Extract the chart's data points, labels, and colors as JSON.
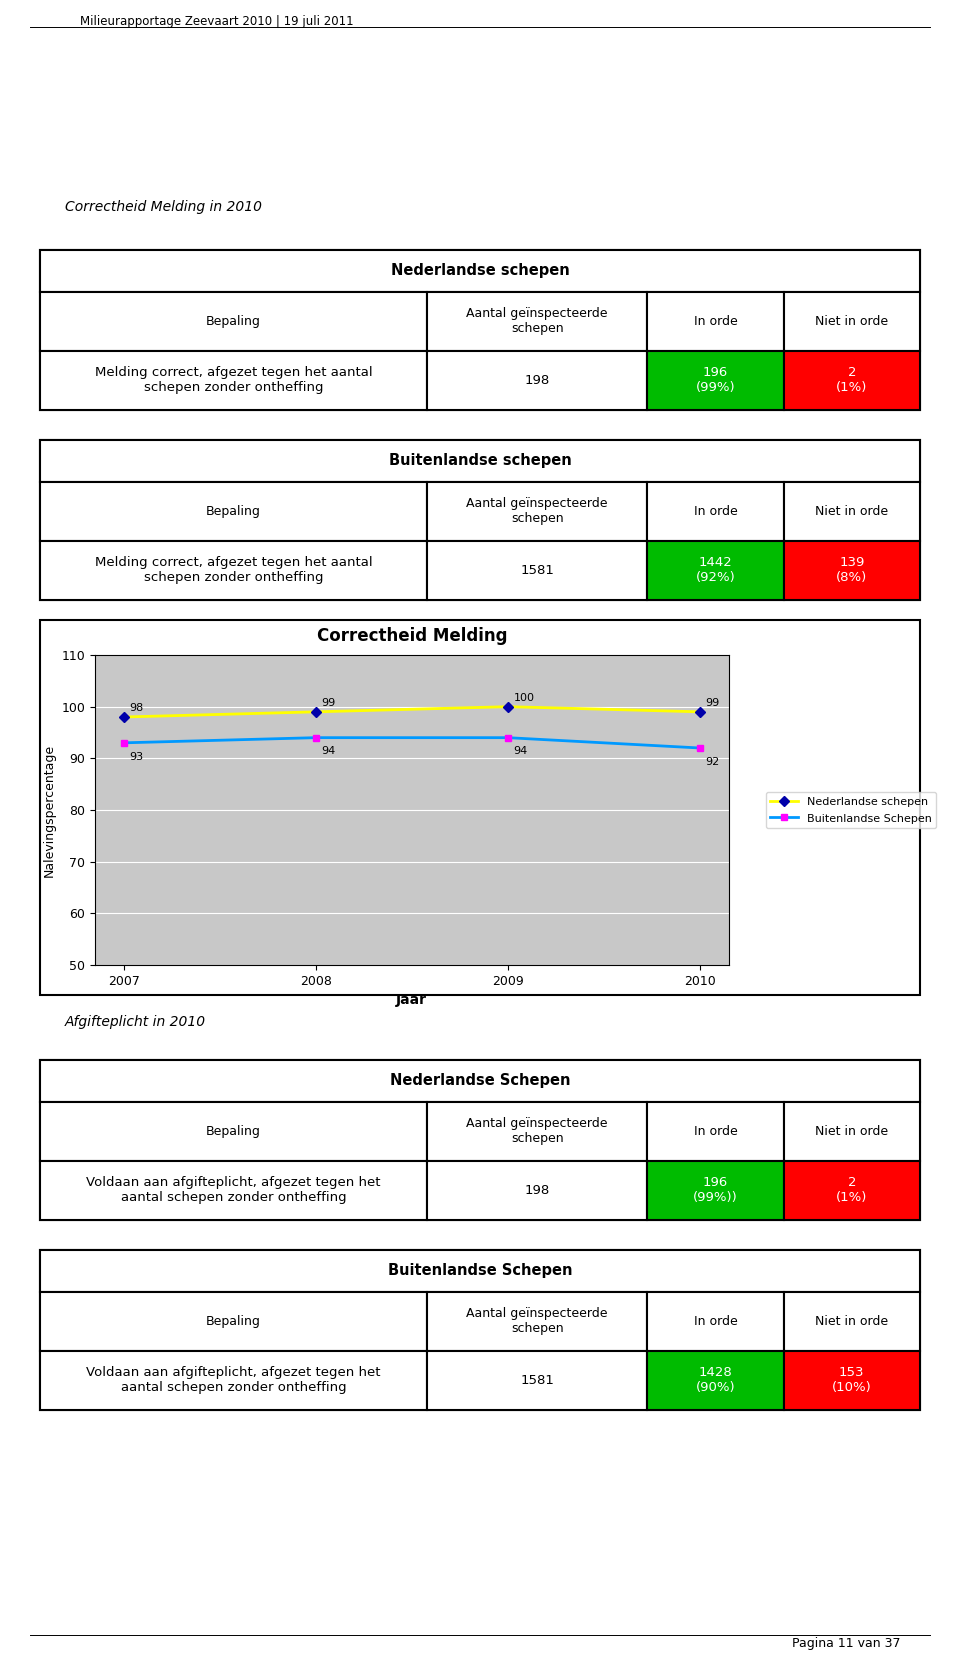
{
  "header_text": "Milieurapportage Zeevaart 2010 | 19 juli 2011",
  "section1_title": "Correctheid Melding in 2010",
  "table1_header": "Nederlandse schepen",
  "table1_cols": [
    "Bepaling",
    "Aantal geïnspecteerde\nschepen",
    "In orde",
    "Niet in orde"
  ],
  "table1_row": [
    "Melding correct, afgezet tegen het aantal\nschepen zonder ontheffing",
    "198",
    "196\n(99%)",
    "2\n(1%)"
  ],
  "table1_in_orde_color": "#00bb00",
  "table1_niet_in_orde_color": "#ff0000",
  "table2_header": "Buitenlandse schepen",
  "table2_cols": [
    "Bepaling",
    "Aantal geïnspecteerde\nschepen",
    "In orde",
    "Niet in orde"
  ],
  "table2_row": [
    "Melding correct, afgezet tegen het aantal\nschepen zonder ontheffing",
    "1581",
    "1442\n(92%)",
    "139\n(8%)"
  ],
  "table2_in_orde_color": "#00bb00",
  "table2_niet_in_orde_color": "#ff0000",
  "chart_title": "Correctheid Melding",
  "chart_years": [
    2007,
    2008,
    2009,
    2010
  ],
  "nl_values": [
    98,
    99,
    100,
    99
  ],
  "bl_values": [
    93,
    94,
    94,
    92
  ],
  "nl_label": "Nederlandse schepen",
  "bl_label": "Buitenlandse Schepen",
  "nl_color": "#ffff00",
  "nl_marker_color": "#0000aa",
  "bl_color": "#0099ff",
  "bl_marker_color": "#ff00ff",
  "chart_ylabel": "Nalevingspercentage",
  "chart_xlabel": "Jaar",
  "chart_ylim": [
    50,
    110
  ],
  "chart_yticks": [
    50,
    60,
    70,
    80,
    90,
    100,
    110
  ],
  "section2_title": "Afgifteplicht in 2010",
  "table3_header": "Nederlandse Schepen",
  "table3_cols": [
    "Bepaling",
    "Aantal geïnspecteerde\nschepen",
    "In orde",
    "Niet in orde"
  ],
  "table3_row": [
    "Voldaan aan afgifteplicht, afgezet tegen het\naantal schepen zonder ontheffing",
    "198",
    "196\n(99%))",
    "2\n(1%)"
  ],
  "table3_in_orde_color": "#00bb00",
  "table3_niet_in_orde_color": "#ff0000",
  "table4_header": "Buitenlandse Schepen",
  "table4_cols": [
    "Bepaling",
    "Aantal geïnspecteerde\nschepen",
    "In orde",
    "Niet in orde"
  ],
  "table4_row": [
    "Voldaan aan afgifteplicht, afgezet tegen het\naantal schepen zonder ontheffing",
    "1581",
    "1428\n(90%)",
    "153\n(10%)"
  ],
  "table4_in_orde_color": "#00bb00",
  "table4_niet_in_orde_color": "#ff0000",
  "footer_text": "Pagina 11 van 37",
  "bg_color": "#ffffff",
  "border_color": "#000000"
}
